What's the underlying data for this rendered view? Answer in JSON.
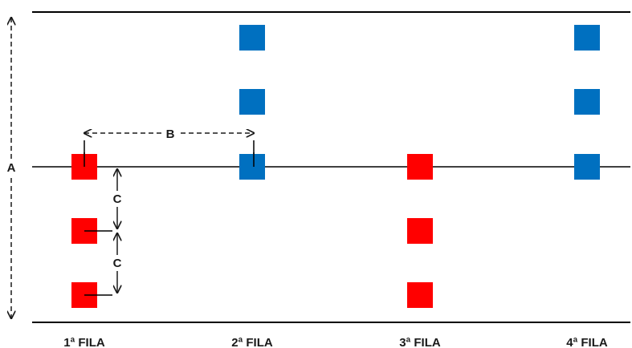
{
  "labels": {
    "A": "A",
    "B": "B",
    "C1": "C",
    "C2": "C"
  },
  "rows": [
    {
      "label": "1ª FILA",
      "color": "#ff0000",
      "squares": 3
    },
    {
      "label": "2ª FILA",
      "color": "#0070c0",
      "squares": 3
    },
    {
      "label": "3ª FILA",
      "color": "#ff0000",
      "squares": 3
    },
    {
      "label": "4ª FILA",
      "color": "#0070c0",
      "squares": 3
    }
  ]
}
